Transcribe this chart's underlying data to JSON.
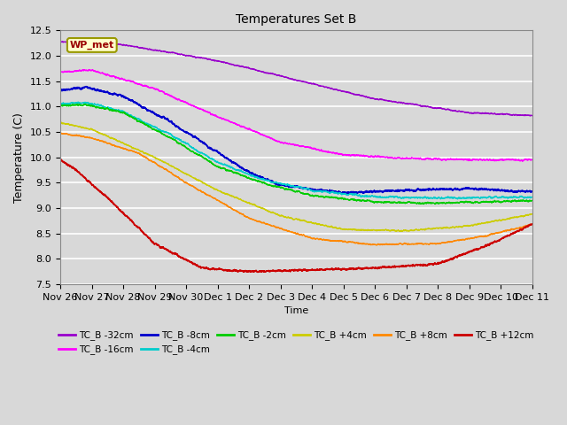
{
  "title": "Temperatures Set B",
  "xlabel": "Time",
  "ylabel": "Temperature (C)",
  "ylim": [
    7.5,
    12.5
  ],
  "background_color": "#d8d8d8",
  "plot_bg_color": "#d8d8d8",
  "grid_color": "white",
  "series": [
    {
      "label": "TC_B -32cm",
      "color": "#9900cc",
      "lw": 1.0
    },
    {
      "label": "TC_B -16cm",
      "color": "#ff00ff",
      "lw": 1.0
    },
    {
      "label": "TC_B -8cm",
      "color": "#0000cc",
      "lw": 1.2
    },
    {
      "label": "TC_B -4cm",
      "color": "#00cccc",
      "lw": 1.0
    },
    {
      "label": "TC_B -2cm",
      "color": "#00cc00",
      "lw": 1.0
    },
    {
      "label": "TC_B +4cm",
      "color": "#cccc00",
      "lw": 1.0
    },
    {
      "label": "TC_B +8cm",
      "color": "#ff8800",
      "lw": 1.0
    },
    {
      "label": "TC_B +12cm",
      "color": "#cc0000",
      "lw": 1.2
    }
  ],
  "x_tick_labels": [
    "Nov 26",
    "Nov 27",
    "Nov 28",
    "Nov 29",
    "Nov 30",
    "Dec 1",
    "Dec 2",
    "Dec 3",
    "Dec 4",
    "Dec 5",
    "Dec 6",
    "Dec 7",
    "Dec 8",
    "Dec 9",
    "Dec 10",
    "Dec 11"
  ],
  "n_points": 3600,
  "wp_met_box_color": "#ffffcc",
  "wp_met_text_color": "#990000",
  "wp_met_border_color": "#999900"
}
